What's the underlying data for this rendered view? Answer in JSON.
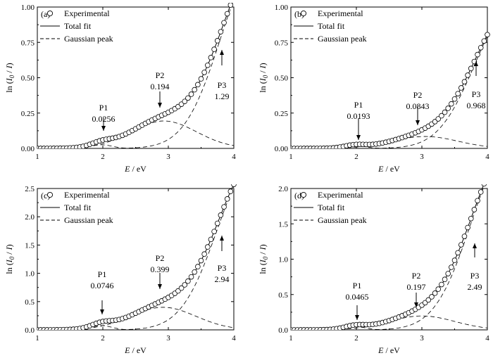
{
  "figure": {
    "legend": {
      "experimental": "Experimental",
      "total_fit": "Total fit",
      "gaussian": "Gaussian peak"
    },
    "xlabel": "E / eV",
    "ylabel": "ln (I0 / I)"
  },
  "chart_data": [
    {
      "type": "line",
      "panel_label": "(a)",
      "xlabel": "E / eV",
      "ylabel": "ln (I0 / I)",
      "xlim": [
        1,
        4
      ],
      "ylim": [
        0,
        1.0
      ],
      "xticks": [
        "1",
        "2",
        "3",
        "4"
      ],
      "yticks": [
        "0.00",
        "0.25",
        "0.50",
        "0.75",
        "1.00"
      ],
      "legend_position": "top-left",
      "peaks": [
        {
          "name": "P1",
          "value": "0.0256",
          "energy": 1.98,
          "amplitude": 0.0256,
          "sigma": 0.16
        },
        {
          "name": "P2",
          "value": "0.194",
          "energy": 2.93,
          "amplitude": 0.194,
          "sigma": 0.5
        },
        {
          "name": "P3",
          "value": "1.29",
          "energy": 4.35,
          "amplitude": 1.29,
          "sigma": 0.55
        }
      ],
      "series": [
        {
          "name": "Experimental",
          "style": "open-circle"
        },
        {
          "name": "Total fit",
          "style": "solid"
        },
        {
          "name": "Gaussian peak",
          "style": "dashed"
        }
      ]
    },
    {
      "type": "line",
      "panel_label": "(b)",
      "xlabel": "E / eV",
      "ylabel": "ln (I0 / I)",
      "xlim": [
        1,
        4
      ],
      "ylim": [
        0,
        1.0
      ],
      "xticks": [
        "1",
        "2",
        "3",
        "4"
      ],
      "yticks": [
        "0.00",
        "0.25",
        "0.50",
        "0.75",
        "1.00"
      ],
      "legend_position": "top-left",
      "peaks": [
        {
          "name": "P1",
          "value": "0.0193",
          "energy": 1.98,
          "amplitude": 0.0193,
          "sigma": 0.16
        },
        {
          "name": "P2",
          "value": "0.0843",
          "energy": 3.05,
          "amplitude": 0.0843,
          "sigma": 0.5
        },
        {
          "name": "P3",
          "value": "0.968",
          "energy": 4.35,
          "amplitude": 0.968,
          "sigma": 0.55
        }
      ],
      "series": [
        {
          "name": "Experimental",
          "style": "open-circle"
        },
        {
          "name": "Total fit",
          "style": "solid"
        },
        {
          "name": "Gaussian peak",
          "style": "dashed"
        }
      ]
    },
    {
      "type": "line",
      "panel_label": "(c)",
      "xlabel": "E / eV",
      "ylabel": "ln (I0 / I)",
      "xlim": [
        1,
        4
      ],
      "ylim": [
        0,
        2.5
      ],
      "xticks": [
        "1",
        "2",
        "3",
        "4"
      ],
      "yticks": [
        "0.0",
        "0.5",
        "1.0",
        "1.5",
        "2.0",
        "2.5"
      ],
      "legend_position": "top-left",
      "peaks": [
        {
          "name": "P1",
          "value": "0.0746",
          "energy": 1.98,
          "amplitude": 0.0746,
          "sigma": 0.16
        },
        {
          "name": "P2",
          "value": "0.399",
          "energy": 2.92,
          "amplitude": 0.399,
          "sigma": 0.5
        },
        {
          "name": "P3",
          "value": "2.94",
          "energy": 4.3,
          "amplitude": 2.94,
          "sigma": 0.55
        }
      ],
      "series": [
        {
          "name": "Experimental",
          "style": "open-circle"
        },
        {
          "name": "Total fit",
          "style": "solid"
        },
        {
          "name": "Gaussian peak",
          "style": "dashed"
        }
      ]
    },
    {
      "type": "line",
      "panel_label": "(d)",
      "xlabel": "E / eV",
      "ylabel": "ln (I0 / I)",
      "xlim": [
        1,
        4
      ],
      "ylim": [
        0,
        2.0
      ],
      "xticks": [
        "1",
        "2",
        "3",
        "4"
      ],
      "yticks": [
        "0.0",
        "0.5",
        "1.0",
        "1.5",
        "2.0"
      ],
      "legend_position": "top-left",
      "peaks": [
        {
          "name": "P1",
          "value": "0.0465",
          "energy": 1.98,
          "amplitude": 0.0465,
          "sigma": 0.16
        },
        {
          "name": "P2",
          "value": "0.197",
          "energy": 3.0,
          "amplitude": 0.197,
          "sigma": 0.5
        },
        {
          "name": "P3",
          "value": "2.49",
          "energy": 4.3,
          "amplitude": 2.49,
          "sigma": 0.55
        }
      ],
      "series": [
        {
          "name": "Experimental",
          "style": "open-circle"
        },
        {
          "name": "Total fit",
          "style": "solid"
        },
        {
          "name": "Gaussian peak",
          "style": "dashed"
        }
      ]
    }
  ]
}
